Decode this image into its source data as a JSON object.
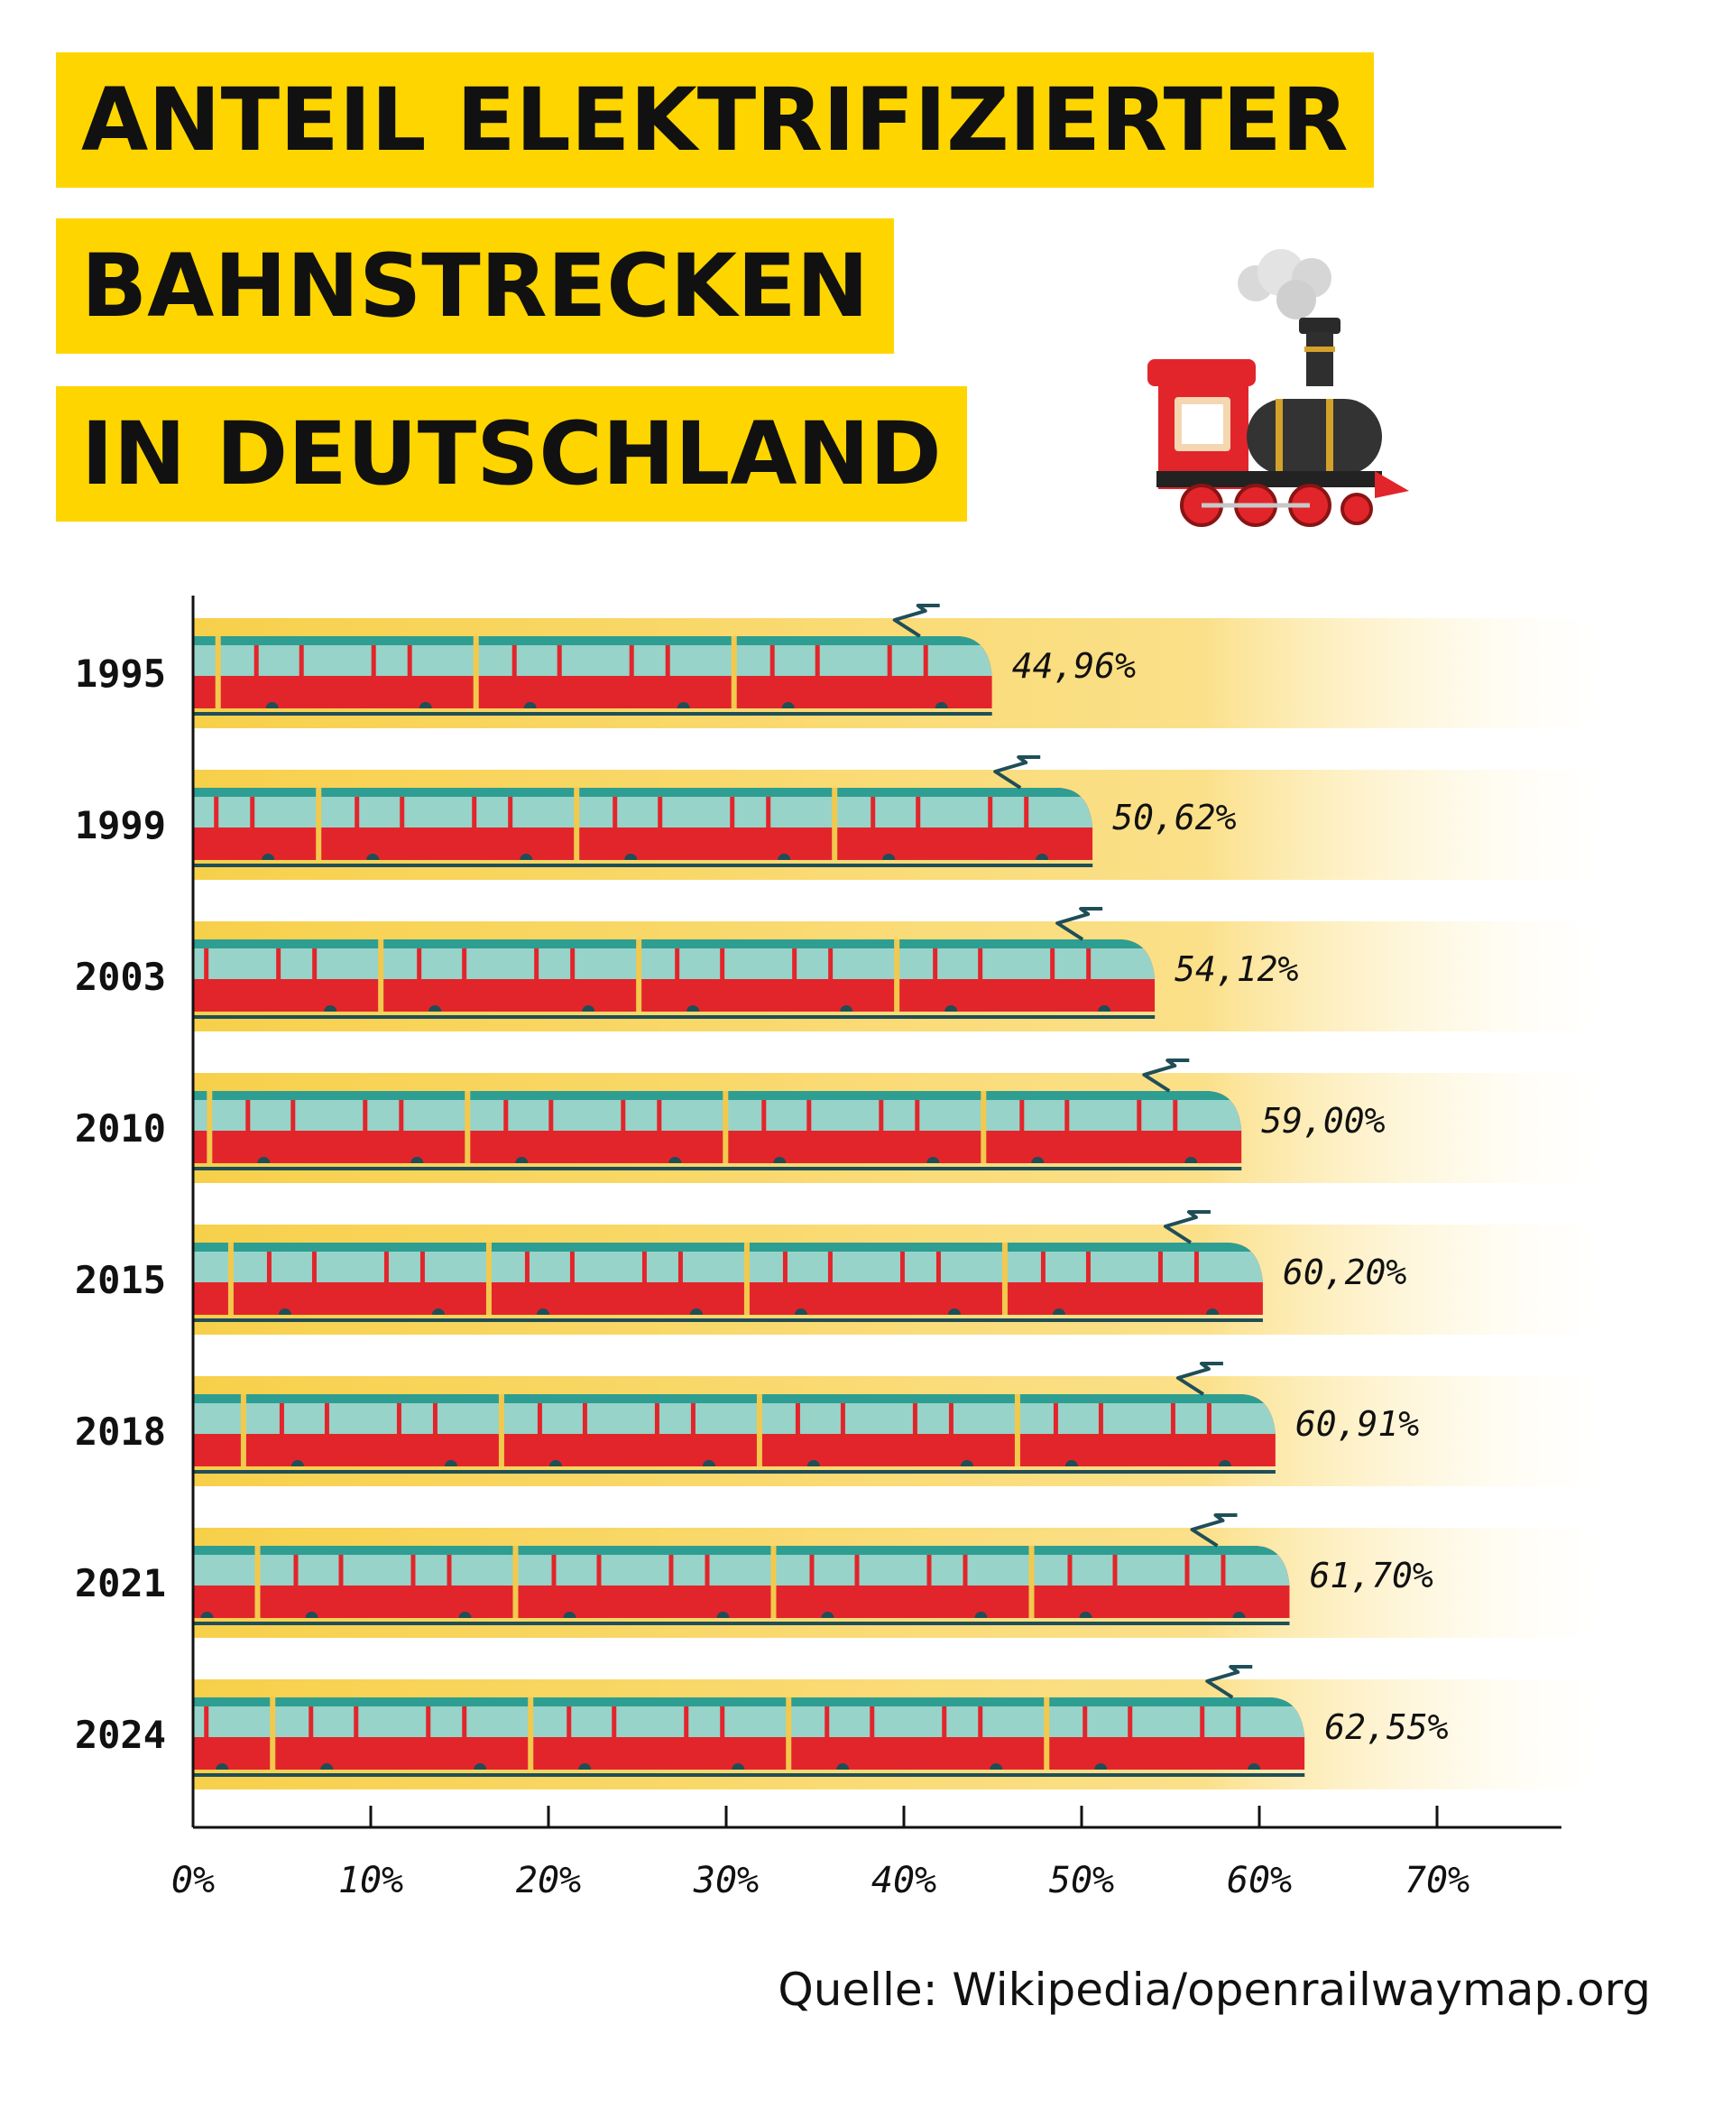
{
  "title_lines": [
    "ANTEIL ELEKTRIFIZIERTER",
    "BAHNSTRECKEN",
    "IN DEUTSCHLAND"
  ],
  "source": "Quelle: Wikipedia/openrailwaymap.org",
  "icons": {
    "title_decoration": "steam-locomotive-icon",
    "bar_mark": "tram-train-icon"
  },
  "colors": {
    "title_highlight": "#ffd500",
    "band": "#f7d04a",
    "train_body": "#e2252b",
    "train_window": "#97d3c8",
    "train_roof": "#2e9e92",
    "rail": "#1f4e58",
    "axis": "#111111"
  },
  "chart_data": {
    "type": "bar",
    "orientation": "horizontal",
    "title": "ANTEIL ELEKTRIFIZIERTER BAHNSTRECKEN IN DEUTSCHLAND",
    "categories": [
      "1995",
      "1999",
      "2003",
      "2010",
      "2015",
      "2018",
      "2021",
      "2024"
    ],
    "values": [
      44.96,
      50.62,
      54.12,
      59.0,
      60.2,
      60.91,
      61.7,
      62.55
    ],
    "value_labels": [
      "44,96%",
      "50,62%",
      "54,12%",
      "59,00%",
      "60,20%",
      "60,91%",
      "61,70%",
      "62,55%"
    ],
    "xlim": [
      0,
      77
    ],
    "xticks": [
      0,
      10,
      20,
      30,
      40,
      50,
      60,
      70
    ],
    "xtick_labels": [
      "0%",
      "10%",
      "20%",
      "30%",
      "40%",
      "50%",
      "60%",
      "70%"
    ],
    "xlabel": "",
    "ylabel": "",
    "grid": false,
    "legend": "none"
  }
}
